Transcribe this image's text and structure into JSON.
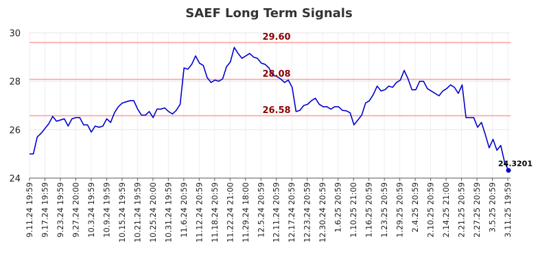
{
  "chart_data": {
    "type": "line",
    "title": "SAEF Long Term Signals",
    "xlabel": "",
    "ylabel": "",
    "ylim": [
      24,
      30
    ],
    "yticks": [
      "24",
      "26",
      "28",
      "30"
    ],
    "grid": true,
    "legend": "none",
    "line_color": "#0000cc",
    "ref_color": "#ffb3b3",
    "ref_label_color": "#8b0000",
    "x_tick_labels": [
      "9.11.24 19:59",
      "9.17.24 19:59",
      "9.23.24 19:59",
      "9.27.24 20:00",
      "10.3.24 19:59",
      "10.9.24 19:59",
      "10.15.24 19:59",
      "10.21.24 19:59",
      "10.25.24 20:00",
      "10.31.24 19:59",
      "11.6.24 20:59",
      "11.12.24 20:59",
      "11.18.24 20:59",
      "11.22.24 21:00",
      "11.29.24 18:00",
      "12.5.24 20:59",
      "12.11.24 20:59",
      "12.17.24 20:59",
      "12.23.24 20:59",
      "12.30.24 20:59",
      "1.6.25 20:59",
      "1.10.25 21:00",
      "1.16.25 20:59",
      "1.23.25 20:59",
      "1.29.25 20:59",
      "2.4.25 20:59",
      "2.10.25 20:59",
      "2.14.25 21:00",
      "2.21.25 20:59",
      "2.27.25 20:59",
      "3.5.25 20:59",
      "3.11.25 19:59"
    ],
    "reference_lines": [
      {
        "value": 29.6,
        "label": "29.60"
      },
      {
        "value": 28.08,
        "label": "28.08"
      },
      {
        "value": 26.58,
        "label": "26.58"
      }
    ],
    "last_label": "24.3201",
    "series": [
      {
        "values": [
          25.0,
          25.0,
          25.7,
          25.85,
          26.05,
          26.25,
          26.55,
          26.35,
          26.4,
          26.45,
          26.15,
          26.45,
          26.5,
          26.5,
          26.2,
          26.2,
          25.9,
          26.15,
          26.1,
          26.15,
          26.45,
          26.3,
          26.7,
          26.95,
          27.1,
          27.15,
          27.2,
          27.2,
          26.85,
          26.6,
          26.6,
          26.75,
          26.5,
          26.85,
          26.85,
          26.9,
          26.75,
          26.65,
          26.8,
          27.05,
          28.55,
          28.5,
          28.7,
          29.05,
          28.75,
          28.65,
          28.15,
          27.95,
          28.05,
          28.0,
          28.1,
          28.6,
          28.8,
          29.4,
          29.15,
          28.95,
          29.05,
          29.15,
          29.0,
          28.95,
          28.75,
          28.7,
          28.55,
          28.25,
          28.2,
          28.1,
          27.95,
          28.05,
          27.75,
          26.75,
          26.8,
          27.0,
          27.05,
          27.2,
          27.3,
          27.05,
          26.95,
          26.95,
          26.85,
          26.95,
          26.95,
          26.8,
          26.78,
          26.7,
          26.2,
          26.4,
          26.6,
          27.1,
          27.2,
          27.45,
          27.8,
          27.6,
          27.65,
          27.8,
          27.75,
          27.95,
          28.05,
          28.45,
          28.1,
          27.65,
          27.65,
          28.0,
          28.0,
          27.7,
          27.6,
          27.5,
          27.4,
          27.6,
          27.7,
          27.85,
          27.75,
          27.5,
          27.85,
          26.5,
          26.5,
          26.5,
          26.1,
          26.3,
          25.8,
          25.25,
          25.6,
          25.15,
          25.35,
          24.65,
          24.32
        ]
      }
    ]
  }
}
